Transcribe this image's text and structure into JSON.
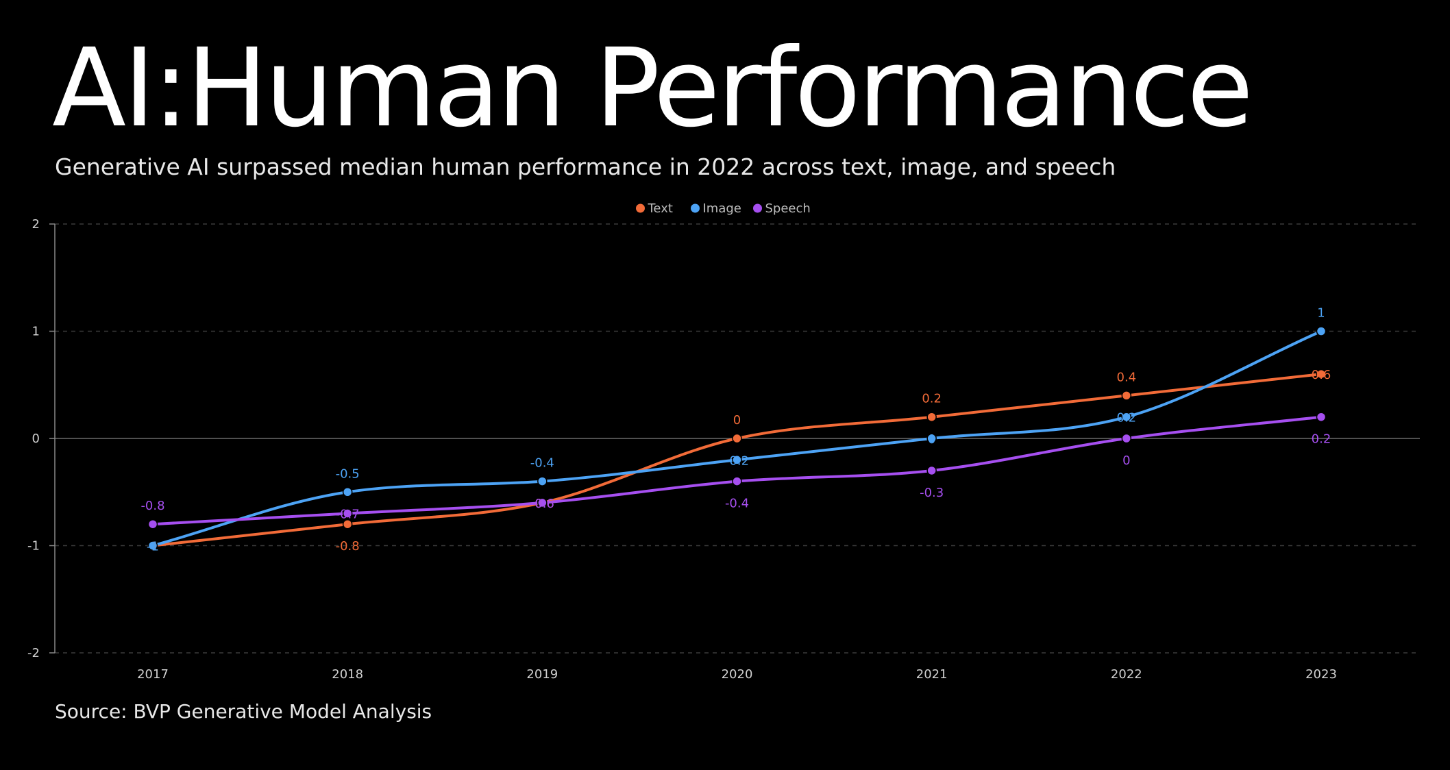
{
  "chart_data": {
    "type": "line",
    "title": "AI:Human Performance",
    "subtitle": "Generative AI surpassed median human performance in 2022 across text, image, and speech",
    "source": "Source: BVP Generative Model Analysis",
    "categories": [
      "2017",
      "2018",
      "2019",
      "2020",
      "2021",
      "2022",
      "2023"
    ],
    "series": [
      {
        "name": "Text",
        "color": "#f26b38",
        "values": [
          -1,
          -0.8,
          -0.6,
          0,
          0.2,
          0.4,
          0.6
        ]
      },
      {
        "name": "Image",
        "color": "#4da3f5",
        "values": [
          -1,
          -0.5,
          -0.4,
          -0.2,
          0,
          0.2,
          1
        ]
      },
      {
        "name": "Speech",
        "color": "#a64ff0",
        "values": [
          -0.8,
          -0.7,
          -0.6,
          -0.4,
          -0.3,
          0,
          0.2
        ]
      }
    ],
    "ylim": [
      -2,
      2
    ],
    "yticks": [
      2,
      1,
      0,
      -1,
      -2
    ],
    "legend_position": "top-center",
    "grid": true,
    "xlabel": "",
    "ylabel": ""
  }
}
